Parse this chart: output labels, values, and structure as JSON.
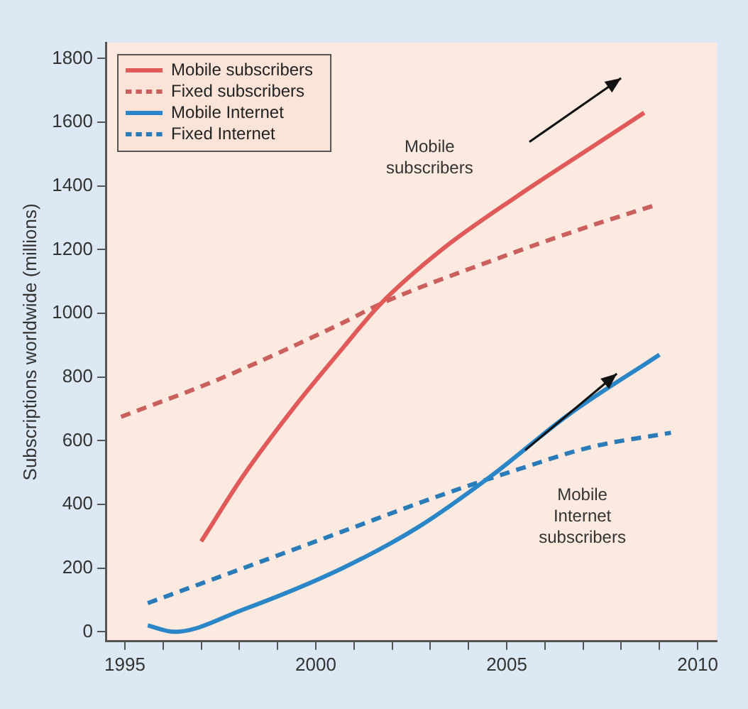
{
  "chart_data": {
    "type": "line",
    "ylabel": "Subscriptions worldwide (millions)",
    "xlim": [
      1994.5,
      2010.5
    ],
    "xticks": [
      1995,
      {
        "value": 1996,
        "label": null
      },
      {
        "value": 1997,
        "label": null
      },
      {
        "value": 1998,
        "label": null
      },
      {
        "value": 1999,
        "label": null
      },
      2000,
      {
        "value": 2001,
        "label": null
      },
      {
        "value": 2002,
        "label": null
      },
      {
        "value": 2003,
        "label": null
      },
      {
        "value": 2004,
        "label": null
      },
      2005,
      {
        "value": 2006,
        "label": null
      },
      {
        "value": 2007,
        "label": null
      },
      {
        "value": 2008,
        "label": null
      },
      {
        "value": 2009,
        "label": null
      },
      2010
    ],
    "ylim": [
      -30,
      1850
    ],
    "yticks": [
      0,
      200,
      400,
      600,
      800,
      1000,
      1200,
      1400,
      1600,
      1800
    ],
    "grid": false,
    "legend": "top left",
    "series": [
      {
        "name": "Mobile subscribers",
        "color": "#e05a5a",
        "line_style": "solid",
        "x": [
          1997,
          1998.1,
          1999.4,
          2000.7,
          2001.7,
          2003.3,
          2005.3,
          2007.2,
          2008.6
        ],
        "values": [
          284,
          490,
          700,
          890,
          1030,
          1200,
          1370,
          1520,
          1630
        ]
      },
      {
        "name": "Fixed subscribers",
        "color": "#c9605e",
        "line_style": "dashed",
        "x": [
          1994.9,
          1997.5,
          2000.7,
          2001.7,
          2004.6,
          2007.2,
          2008.9
        ],
        "values": [
          675,
          795,
          970,
          1030,
          1165,
          1275,
          1340
        ]
      },
      {
        "name": "Mobile Internet",
        "color": "#2b86c8",
        "line_style": "solid",
        "x": [
          1995.6,
          1996.3,
          1998.1,
          2000.7,
          2002.7,
          2004.6,
          2006.6,
          2009
        ],
        "values": [
          20,
          0,
          70,
          200,
          330,
          490,
          680,
          870
        ]
      },
      {
        "name": "Fixed Internet",
        "color": "#2a7cb8",
        "line_style": "dashed",
        "x": [
          1995.6,
          1998.1,
          2000.7,
          2003.3,
          2005.3,
          2007.2,
          2009.3
        ],
        "values": [
          90,
          200,
          315,
          430,
          510,
          580,
          625
        ]
      }
    ],
    "annotations": [
      "Mobile\nsubscribers",
      "Mobile\nInternet\nsubscribers"
    ]
  }
}
